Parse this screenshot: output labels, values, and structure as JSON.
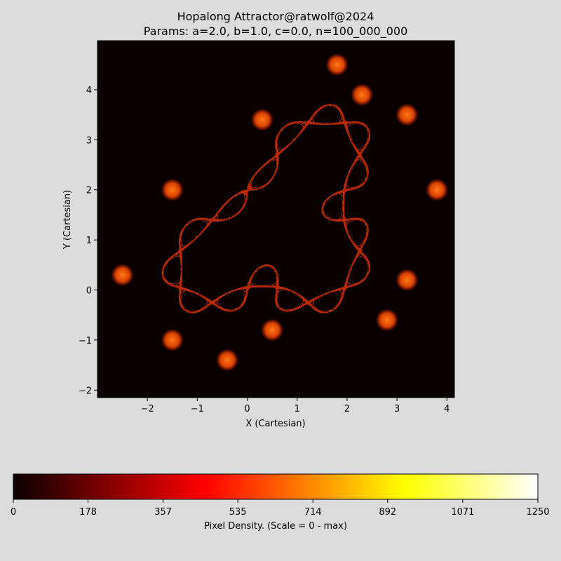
{
  "chart_data": {
    "type": "heatmap",
    "title": "Hopalong Attractor@ratwolf@2024",
    "subtitle": "Params: a=2.0, b=1.0, c=0.0, n=100_000_000",
    "xlabel": "X (Cartesian)",
    "ylabel": "Y (Cartesian)",
    "xlim": [
      -3.0,
      4.15
    ],
    "ylim": [
      -2.15,
      4.98
    ],
    "xticks": [
      -2,
      -1,
      0,
      1,
      2,
      3,
      4
    ],
    "yticks": [
      -2,
      -1,
      0,
      1,
      2,
      3,
      4
    ],
    "xtick_labels": [
      "−2",
      "−1",
      "0",
      "1",
      "2",
      "3",
      "4"
    ],
    "ytick_labels": [
      "−2",
      "−1",
      "0",
      "1",
      "2",
      "3",
      "4"
    ],
    "colormap": "hot",
    "background_color": "#0b0000",
    "colorbar": {
      "label": "Pixel Density. (Scale = 0 - max)",
      "min": 0,
      "max": 1250,
      "ticks": [
        0,
        178,
        357,
        535,
        714,
        892,
        1071,
        1250
      ],
      "tick_labels": [
        "0",
        "178",
        "357",
        "535",
        "714",
        "892",
        "1071",
        "1250"
      ],
      "placement": "bottom"
    },
    "params": {
      "a": 2.0,
      "b": 1.0,
      "c": 0.0,
      "n": 100000000
    }
  }
}
